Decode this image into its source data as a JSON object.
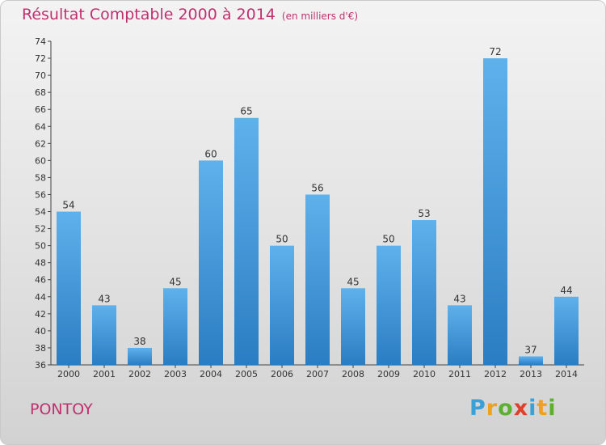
{
  "header": {
    "title": "Résultat Comptable 2000 à 2014",
    "unit": "(en milliers d'€)"
  },
  "footer": {
    "place": "PONTOY",
    "logo": {
      "letters": [
        "P",
        "r",
        "o",
        "x",
        "i",
        "t",
        "i"
      ],
      "colors": [
        "#3aa0d8",
        "#f0a020",
        "#5cb030",
        "#e0402a",
        "#3aa0d8",
        "#f0a020",
        "#5cb030"
      ]
    }
  },
  "colors": {
    "bar_light": "#5fb1ec",
    "bar_dark": "#2a7dc2",
    "title": "#c0306e",
    "axis": "#444444"
  },
  "chart_data": {
    "type": "bar",
    "categories": [
      "2000",
      "2001",
      "2002",
      "2003",
      "2004",
      "2005",
      "2006",
      "2007",
      "2008",
      "2009",
      "2010",
      "2011",
      "2012",
      "2013",
      "2014"
    ],
    "values": [
      54,
      43,
      38,
      45,
      60,
      65,
      50,
      56,
      45,
      50,
      53,
      43,
      72,
      37,
      44
    ],
    "title": "Résultat Comptable 2000 à 2014",
    "xlabel": "",
    "ylabel": "",
    "ylim": [
      36,
      74
    ],
    "yticks": [
      36,
      38,
      40,
      42,
      44,
      46,
      48,
      50,
      52,
      54,
      56,
      58,
      60,
      62,
      64,
      66,
      68,
      70,
      72,
      74
    ],
    "grid": false,
    "data_labels": true
  }
}
